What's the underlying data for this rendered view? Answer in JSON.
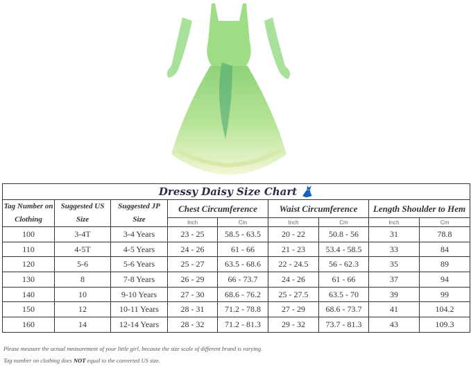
{
  "product_image": {
    "alt_icon": "green-princess-dress-with-gloves"
  },
  "chart": {
    "title": "Dressy Daisy Size Chart",
    "title_icon": "dress-icon",
    "headers": {
      "tag": "Tag Number on Clothing",
      "us": "Suggested US Size",
      "jp": "Suggested JP Size",
      "chest": "Chest Circumference",
      "waist": "Waist Circumference",
      "length": "Length Shoulder to Hem",
      "inch": "Inch",
      "cm": "Cm"
    },
    "rows": [
      [
        "100",
        "3-4T",
        "3-4 Years",
        "23 - 25",
        "58.5 - 63.5",
        "20 - 22",
        "50.8 - 56",
        "31",
        "78.8"
      ],
      [
        "110",
        "4-5T",
        "4-5 Years",
        "24 - 26",
        "61 - 66",
        "21 - 23",
        "53.4 - 58.5",
        "33",
        "84"
      ],
      [
        "120",
        "5-6",
        "5-6 Years",
        "25 - 27",
        "63.5 - 68.6",
        "22 - 24.5",
        "56 - 62.3",
        "35",
        "89"
      ],
      [
        "130",
        "8",
        "7-8 Years",
        "26 - 29",
        "66 - 73.7",
        "24 - 26",
        "61 - 66",
        "37",
        "94"
      ],
      [
        "140",
        "10",
        "9-10 Years",
        "27 - 30",
        "68.6 - 76.2",
        "25 - 27.5",
        "63.5 - 70",
        "39",
        "99"
      ],
      [
        "150",
        "12",
        "10-11 Years",
        "28 - 31",
        "71.2 - 78.8",
        "27 - 29",
        "68.6 - 73.7",
        "41",
        "104.2"
      ],
      [
        "160",
        "14",
        "12-14 Years",
        "28 - 32",
        "71.2 - 81.3",
        "29 - 32",
        "73.7 - 81.3",
        "43",
        "109.3"
      ]
    ]
  },
  "notes": {
    "line1": "Please measure the actual measurement of your little girl, because the size scale of different brand is varying.",
    "line2_pre": "Tag number on clothing does ",
    "line2_bold": "NOT",
    "line2_post": " equal to the converted US size."
  },
  "colors": {
    "header_text": "#8b3a3a",
    "dress_green": "#9ed88a"
  }
}
